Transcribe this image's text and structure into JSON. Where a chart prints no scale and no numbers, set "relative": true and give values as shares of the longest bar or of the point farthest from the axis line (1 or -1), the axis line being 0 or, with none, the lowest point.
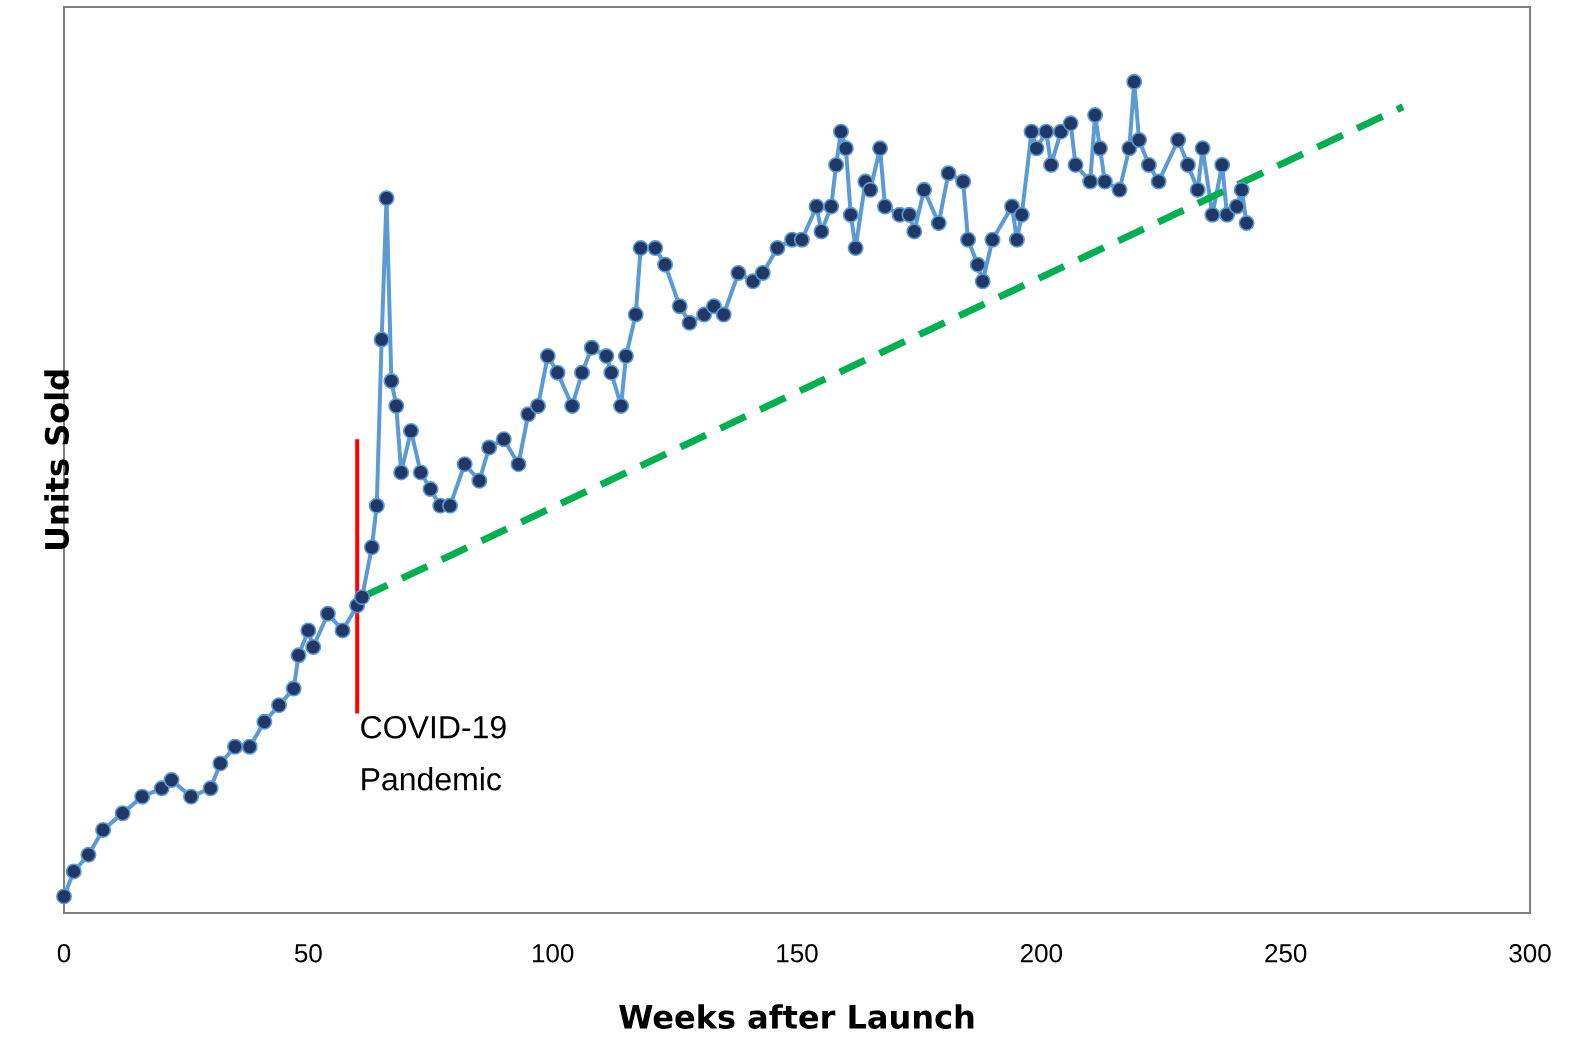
{
  "chart_data": {
    "type": "line",
    "xlabel": "Weeks after Launch",
    "ylabel": "Units Sold",
    "relative": true,
    "xlim": [
      0,
      300
    ],
    "xticks": [
      0,
      50,
      100,
      150,
      200,
      250,
      300
    ],
    "tick_labels": "x",
    "series": [
      {
        "color": "#5b9bd5",
        "marker": "circle",
        "line_style": "solid",
        "x": [
          0,
          2,
          5,
          8,
          12,
          16,
          20,
          22,
          26,
          30,
          32,
          35,
          38,
          41,
          44,
          47,
          48,
          50,
          51,
          54,
          57,
          60,
          61,
          63,
          64,
          65,
          66,
          67,
          68,
          69,
          71,
          73,
          75,
          77,
          79,
          82,
          85,
          87,
          90,
          93,
          95,
          97,
          99,
          101,
          104,
          106,
          108,
          111,
          112,
          114,
          115,
          117,
          118,
          121,
          123,
          126,
          128,
          131,
          133,
          135,
          138,
          141,
          143,
          146,
          149,
          151,
          154,
          155,
          157,
          158,
          159,
          160,
          161,
          162,
          164,
          165,
          167,
          168,
          171,
          173,
          174,
          176,
          179,
          181,
          184,
          185,
          187,
          188,
          190,
          194,
          195,
          196,
          198,
          199,
          201,
          202,
          204,
          206,
          207,
          210,
          211,
          212,
          213,
          216,
          218,
          219,
          220,
          222,
          224,
          228,
          230,
          232,
          233,
          235,
          237,
          238,
          240,
          241,
          242
        ],
        "values": [
          0.02,
          0.05,
          0.07,
          0.1,
          0.12,
          0.14,
          0.15,
          0.16,
          0.14,
          0.15,
          0.18,
          0.2,
          0.2,
          0.23,
          0.25,
          0.27,
          0.31,
          0.34,
          0.32,
          0.36,
          0.34,
          0.37,
          0.38,
          0.44,
          0.49,
          0.69,
          0.86,
          0.64,
          0.61,
          0.53,
          0.58,
          0.53,
          0.51,
          0.49,
          0.49,
          0.54,
          0.52,
          0.56,
          0.57,
          0.54,
          0.6,
          0.61,
          0.67,
          0.65,
          0.61,
          0.65,
          0.68,
          0.67,
          0.65,
          0.61,
          0.67,
          0.72,
          0.8,
          0.8,
          0.78,
          0.73,
          0.71,
          0.72,
          0.73,
          0.72,
          0.77,
          0.76,
          0.77,
          0.8,
          0.81,
          0.81,
          0.85,
          0.82,
          0.85,
          0.9,
          0.94,
          0.92,
          0.84,
          0.8,
          0.88,
          0.87,
          0.92,
          0.85,
          0.84,
          0.84,
          0.82,
          0.87,
          0.83,
          0.89,
          0.88,
          0.81,
          0.78,
          0.76,
          0.81,
          0.85,
          0.81,
          0.84,
          0.94,
          0.92,
          0.94,
          0.9,
          0.94,
          0.95,
          0.9,
          0.88,
          0.96,
          0.92,
          0.88,
          0.87,
          0.92,
          1,
          0.93,
          0.9,
          0.88,
          0.93,
          0.9,
          0.87,
          0.92,
          0.84,
          0.9,
          0.84,
          0.85,
          0.87,
          0.83
        ]
      },
      {
        "color": "#00b050",
        "marker": "none",
        "line_style": "dashed",
        "x": [
          61,
          274
        ],
        "values": [
          0.38,
          0.97
        ]
      }
    ],
    "ref_lines": [
      {
        "axis": "x",
        "value": 60,
        "label": "COVID-19 Pandemic",
        "color": "#ff0000"
      }
    ]
  }
}
